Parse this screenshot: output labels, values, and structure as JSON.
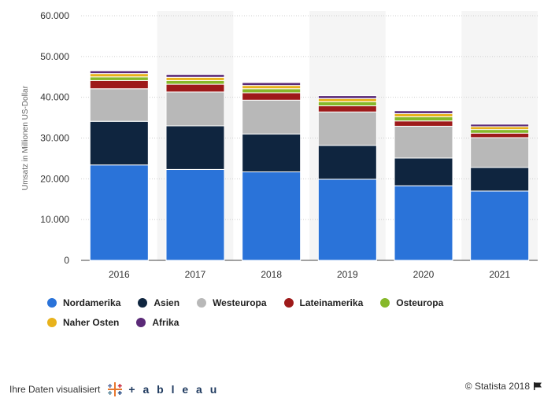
{
  "chart_data": {
    "type": "bar",
    "stacked": true,
    "categories": [
      "2016",
      "2017",
      "2018",
      "2019",
      "2020",
      "2021"
    ],
    "ylabel": "Umsatz in Millionen US-Dollar",
    "ylim": [
      0,
      60000
    ],
    "yticks": [
      "0",
      "10.000",
      "20.000",
      "30.000",
      "40.000",
      "50.000",
      "60.000"
    ],
    "grid": true,
    "legend_position": "bottom",
    "series": [
      {
        "name": "Nordamerika",
        "color": "#2a73d9",
        "values": [
          23400,
          22300,
          21700,
          19900,
          18300,
          17000
        ]
      },
      {
        "name": "Asien",
        "color": "#0f253f",
        "values": [
          10700,
          10700,
          9300,
          8300,
          6800,
          5800
        ]
      },
      {
        "name": "Westeuropa",
        "color": "#b8b8b8",
        "values": [
          8000,
          8300,
          8300,
          8200,
          7800,
          7300
        ]
      },
      {
        "name": "Lateinamerika",
        "color": "#9e1a1a",
        "values": [
          2000,
          1900,
          1800,
          1500,
          1300,
          1100
        ]
      },
      {
        "name": "Osteuropa",
        "color": "#86b82a",
        "values": [
          900,
          900,
          1000,
          1000,
          1000,
          900
        ]
      },
      {
        "name": "Naher Osten",
        "color": "#e8b21c",
        "values": [
          800,
          800,
          800,
          800,
          800,
          700
        ]
      },
      {
        "name": "Afrika",
        "color": "#5b2a78",
        "values": [
          700,
          700,
          700,
          700,
          700,
          600
        ]
      }
    ]
  },
  "footer": {
    "left_text": "Ihre Daten visualisiert",
    "tableau": "+ a b l e a u",
    "right_text": "© Statista 2018"
  },
  "icons": {
    "tableau_logo": "tableau-cross-icon",
    "flag": "flag-icon"
  }
}
